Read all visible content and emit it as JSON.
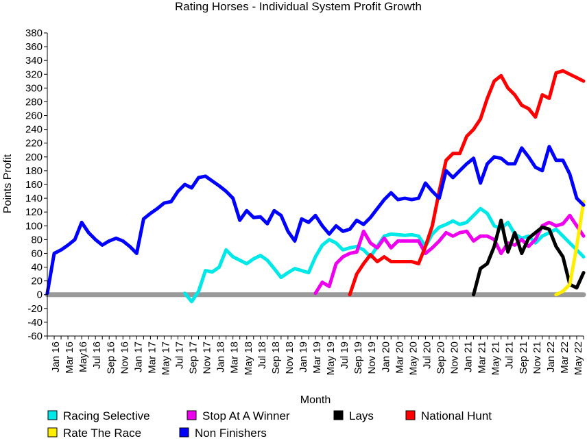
{
  "chart_data": {
    "type": "line",
    "title": "Rating Horses - Individual System Profit Growth",
    "xlabel": "Month",
    "ylabel": "Points Profit",
    "ylim": [
      -60,
      380
    ],
    "ytick_step": 20,
    "xlim": [
      0,
      78
    ],
    "x_tick_labels": [
      "Jan 16",
      "Mar 16",
      "May16",
      "Jul 16",
      "Sep 16",
      "Nov 16",
      "Jan 17",
      "Mar 17",
      "May 17",
      "Jul 17",
      "Sep 17",
      "Nov 17",
      "Jan 18",
      "Mar 18",
      "May 18",
      "Jul 18",
      "Sep 18",
      "Nov 18",
      "Jan 19",
      "Mar 19",
      "May 19",
      "Jul 19",
      "Sep 19",
      "Nov 19",
      "Jan 20",
      "Mar 20",
      "May 20",
      "Jul 20",
      "Sep 20",
      "Nov 20",
      "Jan 21",
      "Mar 21",
      "May 21",
      "Jul 21",
      "Sep 21",
      "Nov 21",
      "Jan 22",
      "Mar 22",
      "May 22"
    ],
    "x_tick_positions": [
      2,
      4,
      6,
      8,
      10,
      12,
      14,
      16,
      18,
      20,
      22,
      24,
      26,
      28,
      30,
      32,
      34,
      36,
      38,
      40,
      42,
      44,
      46,
      48,
      50,
      52,
      54,
      56,
      58,
      60,
      62,
      64,
      66,
      68,
      70,
      72,
      74,
      76,
      78
    ],
    "legend_position": "bottom",
    "grid": false,
    "baseline": {
      "value": 0,
      "color": "#999999"
    },
    "series": [
      {
        "name": "Racing Selective",
        "color": "#00e8e8",
        "points": [
          [
            20,
            2
          ],
          [
            21,
            -10
          ],
          [
            22,
            5
          ],
          [
            23,
            35
          ],
          [
            24,
            33
          ],
          [
            25,
            40
          ],
          [
            26,
            65
          ],
          [
            27,
            55
          ],
          [
            28,
            50
          ],
          [
            29,
            45
          ],
          [
            30,
            52
          ],
          [
            31,
            57
          ],
          [
            32,
            50
          ],
          [
            33,
            38
          ],
          [
            34,
            25
          ],
          [
            35,
            32
          ],
          [
            36,
            38
          ],
          [
            37,
            35
          ],
          [
            38,
            32
          ],
          [
            39,
            55
          ],
          [
            40,
            72
          ],
          [
            41,
            80
          ],
          [
            42,
            75
          ],
          [
            43,
            65
          ],
          [
            44,
            68
          ],
          [
            45,
            70
          ],
          [
            46,
            65
          ],
          [
            47,
            55
          ],
          [
            48,
            70
          ],
          [
            49,
            85
          ],
          [
            50,
            88
          ],
          [
            51,
            87
          ],
          [
            52,
            86
          ],
          [
            53,
            87
          ],
          [
            54,
            85
          ],
          [
            55,
            70
          ],
          [
            56,
            88
          ],
          [
            57,
            98
          ],
          [
            58,
            102
          ],
          [
            59,
            107
          ],
          [
            60,
            102
          ],
          [
            61,
            105
          ],
          [
            62,
            115
          ],
          [
            63,
            125
          ],
          [
            64,
            118
          ],
          [
            65,
            100
          ],
          [
            66,
            96
          ],
          [
            67,
            105
          ],
          [
            68,
            88
          ],
          [
            69,
            82
          ],
          [
            70,
            85
          ],
          [
            71,
            75
          ],
          [
            72,
            85
          ],
          [
            73,
            90
          ],
          [
            74,
            95
          ],
          [
            75,
            85
          ],
          [
            76,
            75
          ],
          [
            77,
            65
          ],
          [
            78,
            55
          ]
        ]
      },
      {
        "name": "Stop At A Winner",
        "color": "#ee00ee",
        "points": [
          [
            39,
            2
          ],
          [
            40,
            18
          ],
          [
            41,
            12
          ],
          [
            42,
            45
          ],
          [
            43,
            55
          ],
          [
            44,
            60
          ],
          [
            45,
            62
          ],
          [
            46,
            92
          ],
          [
            47,
            75
          ],
          [
            48,
            68
          ],
          [
            49,
            82
          ],
          [
            50,
            68
          ],
          [
            51,
            78
          ],
          [
            52,
            78
          ],
          [
            53,
            78
          ],
          [
            54,
            78
          ],
          [
            55,
            60
          ],
          [
            56,
            68
          ],
          [
            57,
            78
          ],
          [
            58,
            90
          ],
          [
            59,
            85
          ],
          [
            60,
            90
          ],
          [
            61,
            92
          ],
          [
            62,
            78
          ],
          [
            63,
            85
          ],
          [
            64,
            85
          ],
          [
            65,
            80
          ],
          [
            66,
            60
          ],
          [
            67,
            75
          ],
          [
            68,
            72
          ],
          [
            69,
            80
          ],
          [
            70,
            70
          ],
          [
            71,
            80
          ],
          [
            72,
            100
          ],
          [
            73,
            105
          ],
          [
            74,
            100
          ],
          [
            75,
            103
          ],
          [
            76,
            115
          ],
          [
            77,
            100
          ],
          [
            78,
            85
          ]
        ]
      },
      {
        "name": "Lays",
        "color": "#000000",
        "points": [
          [
            62,
            0
          ],
          [
            63,
            38
          ],
          [
            64,
            45
          ],
          [
            65,
            70
          ],
          [
            66,
            108
          ],
          [
            67,
            62
          ],
          [
            68,
            90
          ],
          [
            69,
            60
          ],
          [
            70,
            82
          ],
          [
            71,
            90
          ],
          [
            72,
            98
          ],
          [
            73,
            95
          ],
          [
            74,
            70
          ],
          [
            75,
            55
          ],
          [
            76,
            15
          ],
          [
            77,
            10
          ],
          [
            78,
            32
          ]
        ]
      },
      {
        "name": "National Hunt",
        "color": "#ff0000",
        "points": [
          [
            44,
            0
          ],
          [
            45,
            30
          ],
          [
            46,
            45
          ],
          [
            47,
            58
          ],
          [
            48,
            48
          ],
          [
            49,
            55
          ],
          [
            50,
            48
          ],
          [
            51,
            48
          ],
          [
            52,
            48
          ],
          [
            53,
            48
          ],
          [
            54,
            45
          ],
          [
            55,
            70
          ],
          [
            56,
            100
          ],
          [
            57,
            150
          ],
          [
            58,
            195
          ],
          [
            59,
            205
          ],
          [
            60,
            205
          ],
          [
            61,
            230
          ],
          [
            62,
            240
          ],
          [
            63,
            255
          ],
          [
            64,
            285
          ],
          [
            65,
            310
          ],
          [
            66,
            318
          ],
          [
            67,
            300
          ],
          [
            68,
            290
          ],
          [
            69,
            275
          ],
          [
            70,
            270
          ],
          [
            71,
            258
          ],
          [
            72,
            290
          ],
          [
            73,
            285
          ],
          [
            74,
            322
          ],
          [
            75,
            325
          ],
          [
            76,
            320
          ],
          [
            77,
            315
          ],
          [
            78,
            310
          ]
        ]
      },
      {
        "name": "Rate The Race",
        "color": "#ffee00",
        "points": [
          [
            74,
            0
          ],
          [
            75,
            5
          ],
          [
            76,
            15
          ],
          [
            77,
            70
          ],
          [
            78,
            135
          ]
        ]
      },
      {
        "name": "Non Finishers",
        "color": "#0000ff",
        "points": [
          [
            0,
            2
          ],
          [
            1,
            60
          ],
          [
            2,
            65
          ],
          [
            3,
            72
          ],
          [
            4,
            80
          ],
          [
            5,
            105
          ],
          [
            6,
            90
          ],
          [
            7,
            80
          ],
          [
            8,
            72
          ],
          [
            9,
            78
          ],
          [
            10,
            82
          ],
          [
            11,
            78
          ],
          [
            12,
            70
          ],
          [
            13,
            60
          ],
          [
            14,
            110
          ],
          [
            15,
            118
          ],
          [
            16,
            125
          ],
          [
            17,
            133
          ],
          [
            18,
            135
          ],
          [
            19,
            150
          ],
          [
            20,
            160
          ],
          [
            21,
            155
          ],
          [
            22,
            170
          ],
          [
            23,
            172
          ],
          [
            24,
            165
          ],
          [
            25,
            158
          ],
          [
            26,
            150
          ],
          [
            27,
            140
          ],
          [
            28,
            108
          ],
          [
            29,
            122
          ],
          [
            30,
            112
          ],
          [
            31,
            113
          ],
          [
            32,
            103
          ],
          [
            33,
            122
          ],
          [
            34,
            115
          ],
          [
            35,
            92
          ],
          [
            36,
            78
          ],
          [
            37,
            110
          ],
          [
            38,
            105
          ],
          [
            39,
            115
          ],
          [
            40,
            100
          ],
          [
            41,
            88
          ],
          [
            42,
            100
          ],
          [
            43,
            92
          ],
          [
            44,
            95
          ],
          [
            45,
            108
          ],
          [
            46,
            102
          ],
          [
            47,
            112
          ],
          [
            48,
            125
          ],
          [
            49,
            138
          ],
          [
            50,
            148
          ],
          [
            51,
            138
          ],
          [
            52,
            140
          ],
          [
            53,
            138
          ],
          [
            54,
            140
          ],
          [
            55,
            162
          ],
          [
            56,
            150
          ],
          [
            57,
            140
          ],
          [
            58,
            180
          ],
          [
            59,
            170
          ],
          [
            60,
            180
          ],
          [
            61,
            190
          ],
          [
            62,
            198
          ],
          [
            63,
            162
          ],
          [
            64,
            190
          ],
          [
            65,
            200
          ],
          [
            66,
            198
          ],
          [
            67,
            190
          ],
          [
            68,
            190
          ],
          [
            69,
            213
          ],
          [
            70,
            200
          ],
          [
            71,
            185
          ],
          [
            72,
            180
          ],
          [
            73,
            215
          ],
          [
            74,
            195
          ],
          [
            75,
            195
          ],
          [
            76,
            175
          ],
          [
            77,
            140
          ],
          [
            78,
            130
          ]
        ]
      }
    ]
  }
}
